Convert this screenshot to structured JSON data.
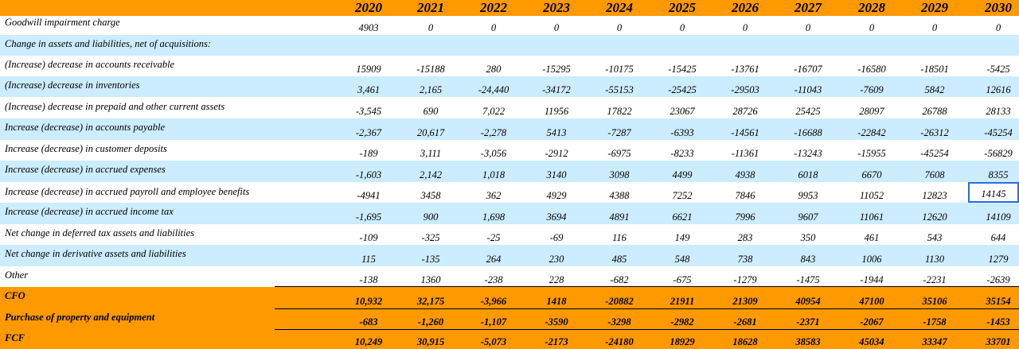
{
  "years": [
    "2020",
    "2021",
    "2022",
    "2023",
    "2024",
    "2025",
    "2026",
    "2027",
    "2028",
    "2029",
    "2030"
  ],
  "rows": [
    {
      "label": "Goodwill impairment charge",
      "values": [
        "4903",
        "0",
        "0",
        "0",
        "0",
        "0",
        "0",
        "0",
        "0",
        "0",
        "0"
      ]
    },
    {
      "label": "Change in assets and liabilities, net of acquisitions:",
      "values": [
        "",
        "",
        "",
        "",
        "",
        "",
        "",
        "",
        "",
        "",
        ""
      ]
    },
    {
      "label": "(Increase) decrease in accounts receivable",
      "values": [
        "15909",
        "-15188",
        "280",
        "-15295",
        "-10175",
        "-15425",
        "-13761",
        "-16707",
        "-16580",
        "-18501",
        "-5425"
      ]
    },
    {
      "label": "(Increase) decrease in inventories",
      "values": [
        "3,461",
        "2,165",
        "-24,440",
        "-34172",
        "-55153",
        "-25425",
        "-29503",
        "-11043",
        "-7609",
        "5842",
        "12616"
      ]
    },
    {
      "label": "(Increase) decrease in prepaid and other current assets",
      "values": [
        "-3,545",
        "690",
        "7,022",
        "11956",
        "17822",
        "23067",
        "28726",
        "25425",
        "28097",
        "26788",
        "28133"
      ]
    },
    {
      "label": "Increase (decrease) in accounts payable",
      "values": [
        "-2,367",
        "20,617",
        "-2,278",
        "5413",
        "-7287",
        "-6393",
        "-14561",
        "-16688",
        "-22842",
        "-26312",
        "-45254"
      ]
    },
    {
      "label": "Increase (decrease) in customer deposits",
      "values": [
        "-189",
        "3,111",
        "-3,056",
        "-2912",
        "-6975",
        "-8233",
        "-11361",
        "-13243",
        "-15955",
        "-45254",
        "-56829"
      ]
    },
    {
      "label": "Increase (decrease) in accrued expenses",
      "values": [
        "-1,603",
        "2,142",
        "1,018",
        "3140",
        "3098",
        "4499",
        "4938",
        "6018",
        "6670",
        "7608",
        "8355"
      ]
    },
    {
      "label": "Increase (decrease) in accrued payroll and employee benefits",
      "values": [
        "-4941",
        "3458",
        "362",
        "4929",
        "4388",
        "7252",
        "7846",
        "9953",
        "11052",
        "12823",
        "14145"
      ]
    },
    {
      "label": "Increase (decrease) in accrued income tax",
      "values": [
        "-1,695",
        "900",
        "1,698",
        "3694",
        "4891",
        "6621",
        "7996",
        "9607",
        "11061",
        "12620",
        "14109"
      ]
    },
    {
      "label": "Net change in deferred tax assets and liabilities",
      "values": [
        "-109",
        "-325",
        "-25",
        "-69",
        "116",
        "149",
        "283",
        "350",
        "461",
        "543",
        "644"
      ]
    },
    {
      "label": "Net change in derivative assets and liabilities",
      "values": [
        "115",
        "-135",
        "264",
        "230",
        "485",
        "548",
        "738",
        "843",
        "1006",
        "1130",
        "1279"
      ]
    },
    {
      "label": "Other",
      "values": [
        "-138",
        "1360",
        "-238",
        "228",
        "-682",
        "-675",
        "-1279",
        "-1475",
        "-1944",
        "-2231",
        "-2639"
      ]
    },
    {
      "label": "CFO",
      "values": [
        "10,932",
        "32,175",
        "-3,966",
        "1418",
        "-20882",
        "21911",
        "21309",
        "40954",
        "47100",
        "35106",
        "35154"
      ]
    },
    {
      "label": "Purchase of property and equipment",
      "values": [
        "-683",
        "-1,260",
        "-1,107",
        "-3590",
        "-3298",
        "-2982",
        "-2681",
        "-2371",
        "-2067",
        "-1758",
        "-1453"
      ]
    },
    {
      "label": "FCF",
      "values": [
        "10,249",
        "30,915",
        "-5,073",
        "-2173",
        "-24180",
        "18929",
        "18628",
        "38583",
        "45034",
        "33347",
        "33701"
      ]
    }
  ],
  "colors": {
    "header_bg": "#ff9900",
    "row_blue": "#ccecff",
    "row_white": "#ffffff",
    "total_bg": "#ff9900",
    "selection": "#2a6edb"
  }
}
